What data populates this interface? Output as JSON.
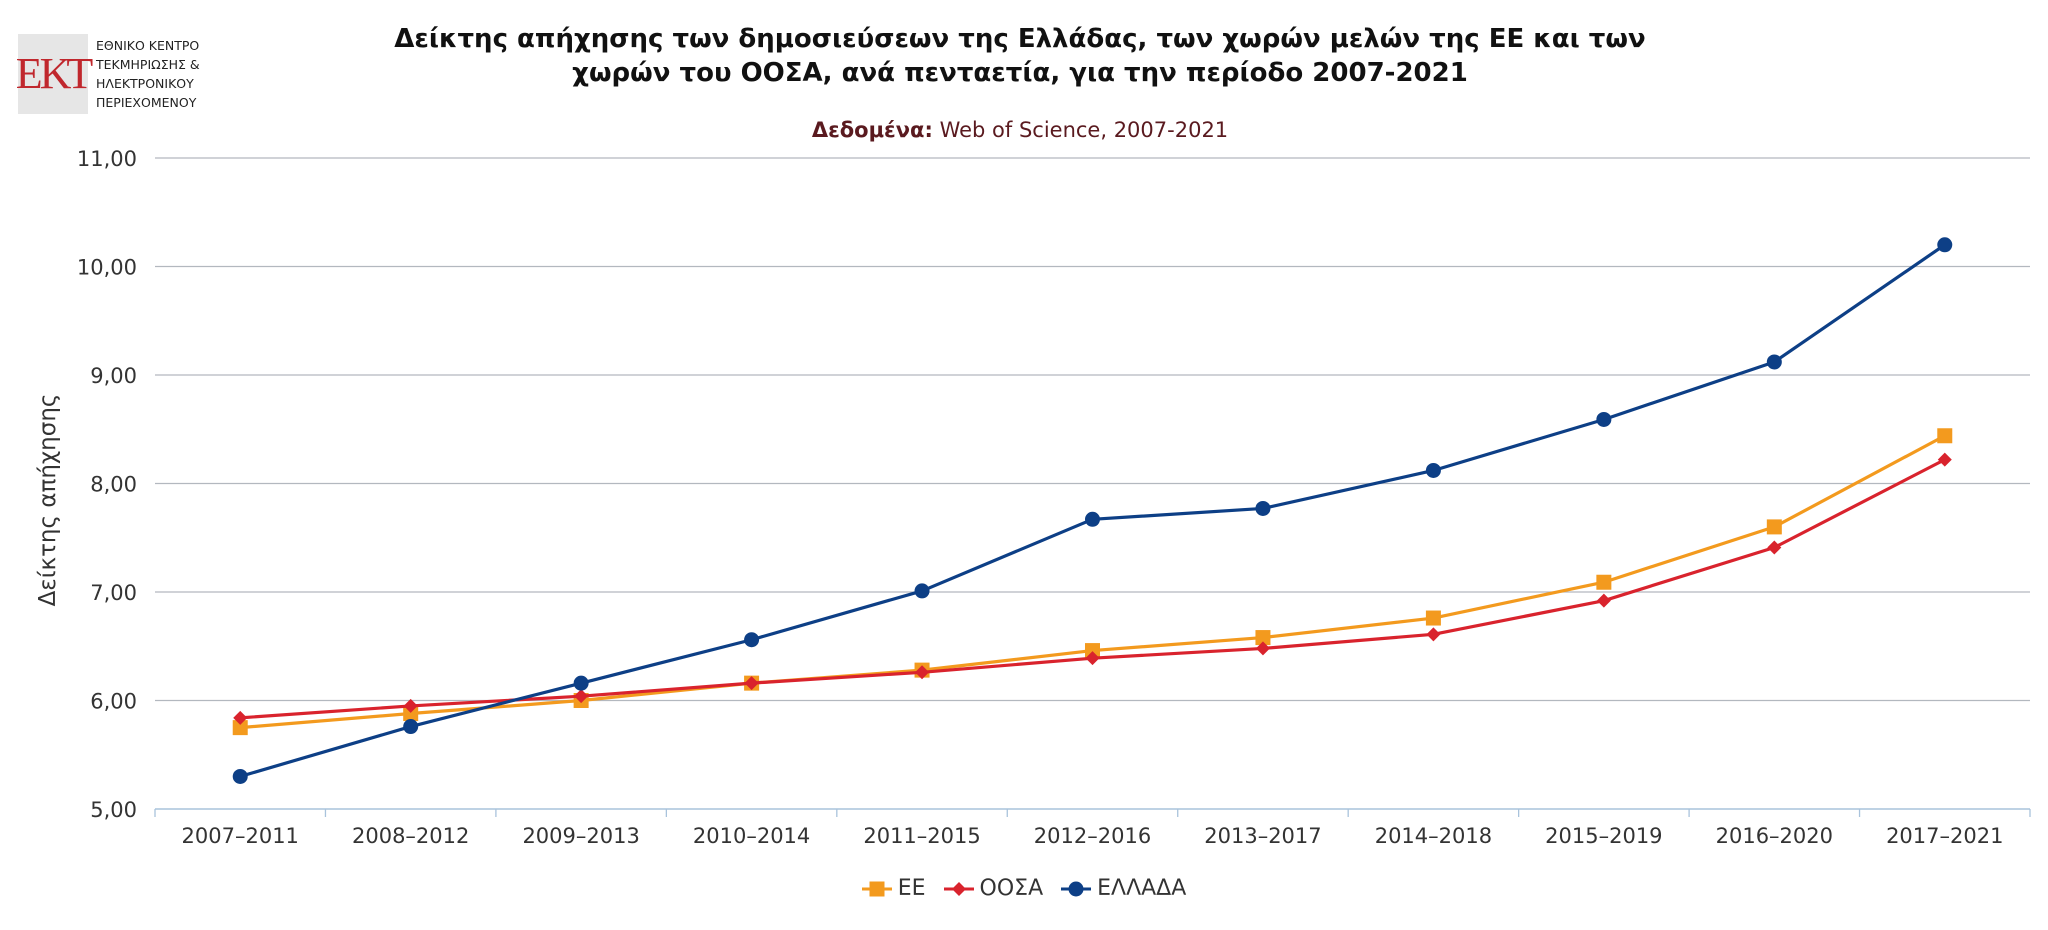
{
  "logo": {
    "mark": "ΕΚΤ",
    "lines": [
      "ΕΘΝΙΚΟ ΚΕΝΤΡΟ",
      "ΤΕΚΜΗΡΙΩΣΗΣ &",
      "ΗΛΕΚΤΡΟΝΙΚΟΥ",
      "ΠΕΡΙΕΧΟΜΕΝΟΥ"
    ]
  },
  "title_line1": "Δείκτης απήχησης των δημοσιεύσεων της Ελλάδας, των χωρών μελών της ΕΕ και των",
  "title_line2": "χωρών του ΟΟΣΑ, ανά πενταετία, για την περίοδο 2007-2021",
  "subtitle_label": "Δεδομένα:",
  "subtitle_text": " Web of Science, 2007-2021",
  "chart_data": {
    "type": "line",
    "title": "Δείκτης απήχησης των δημοσιεύσεων της Ελλάδας, των χωρών μελών της ΕΕ και των χωρών του ΟΟΣΑ, ανά πενταετία, για την περίοδο 2007-2021",
    "subtitle": "Δεδομένα: Web of Science, 2007-2021",
    "xlabel": "",
    "ylabel": "Δείκτης απήχησης",
    "ylim": [
      5,
      11
    ],
    "yticks": [
      "5,00",
      "6,00",
      "7,00",
      "8,00",
      "9,00",
      "10,00",
      "11,00"
    ],
    "categories": [
      "2007–2011",
      "2008–2012",
      "2009–2013",
      "2010–2014",
      "2011–2015",
      "2012–2016",
      "2013–2017",
      "2014–2018",
      "2015–2019",
      "2016–2020",
      "2017–2021"
    ],
    "grid": true,
    "legend_position": "bottom-center",
    "series": [
      {
        "name": "ΕΕ",
        "color": "#f39a1e",
        "marker": "square",
        "values": [
          5.75,
          5.88,
          6.0,
          6.16,
          6.28,
          6.46,
          6.58,
          6.76,
          7.09,
          7.6,
          8.44
        ]
      },
      {
        "name": "ΟΟΣΑ",
        "color": "#d9232d",
        "marker": "diamond",
        "values": [
          5.84,
          5.95,
          6.04,
          6.16,
          6.26,
          6.39,
          6.48,
          6.61,
          6.92,
          7.41,
          8.22
        ]
      },
      {
        "name": "ΕΛΛΑΔΑ",
        "color": "#0d3f86",
        "marker": "circle",
        "values": [
          5.3,
          5.76,
          6.16,
          6.56,
          7.01,
          7.67,
          7.77,
          8.12,
          8.59,
          9.12,
          10.2
        ]
      }
    ]
  }
}
